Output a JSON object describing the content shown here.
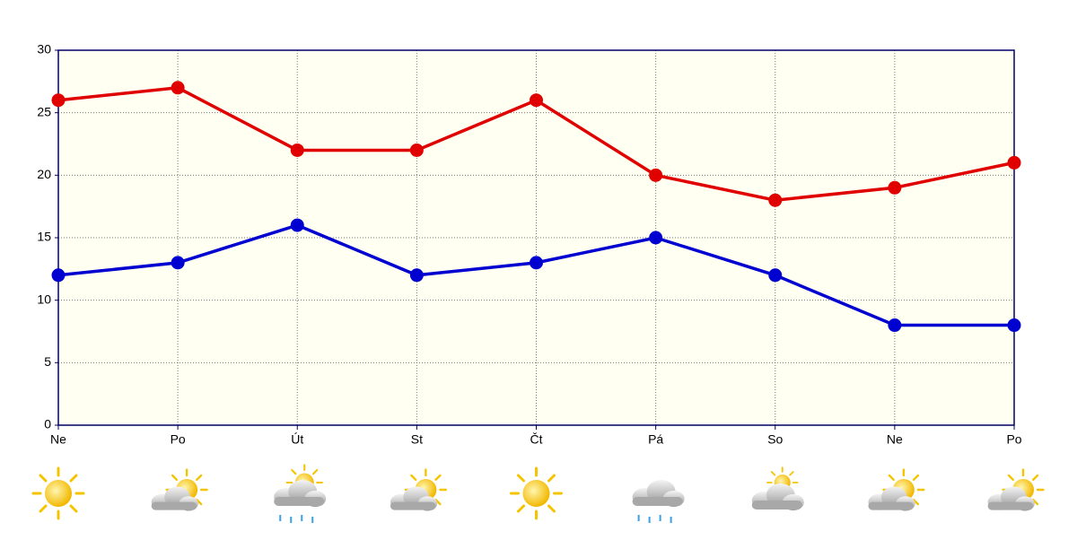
{
  "chart_data": {
    "type": "line",
    "categories": [
      "Ne",
      "Po",
      "Út",
      "St",
      "Čt",
      "Pá",
      "So",
      "Ne",
      "Po"
    ],
    "series": [
      {
        "color": "#e00000",
        "values": [
          26,
          27,
          22,
          22,
          26,
          20,
          18,
          19,
          21
        ]
      },
      {
        "color": "#0000d0",
        "values": [
          12,
          13,
          16,
          12,
          13,
          15,
          12,
          8,
          8
        ]
      }
    ],
    "ylim": [
      0,
      30
    ],
    "yticks": [
      0,
      5,
      10,
      15,
      20,
      25,
      30
    ],
    "grid": true
  }
}
